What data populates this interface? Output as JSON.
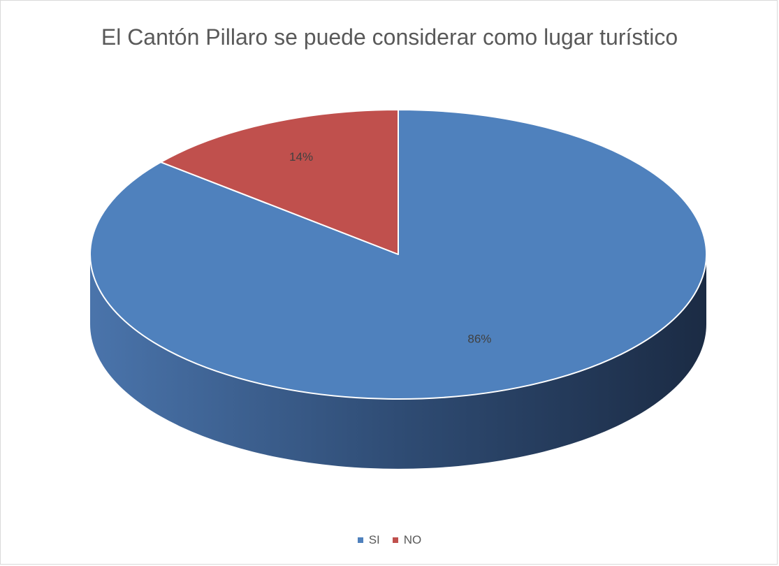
{
  "chart_data": {
    "type": "pie",
    "title": "El Cantón Pillaro se puede considerar como lugar turístico",
    "slices": [
      {
        "label": "SI",
        "value": 86,
        "data_label": "86%",
        "color": "#4f81bd"
      },
      {
        "label": "NO",
        "value": 14,
        "data_label": "14%",
        "color": "#c0504d"
      }
    ],
    "legend": {
      "position": "bottom"
    },
    "style": "3d-pie"
  }
}
